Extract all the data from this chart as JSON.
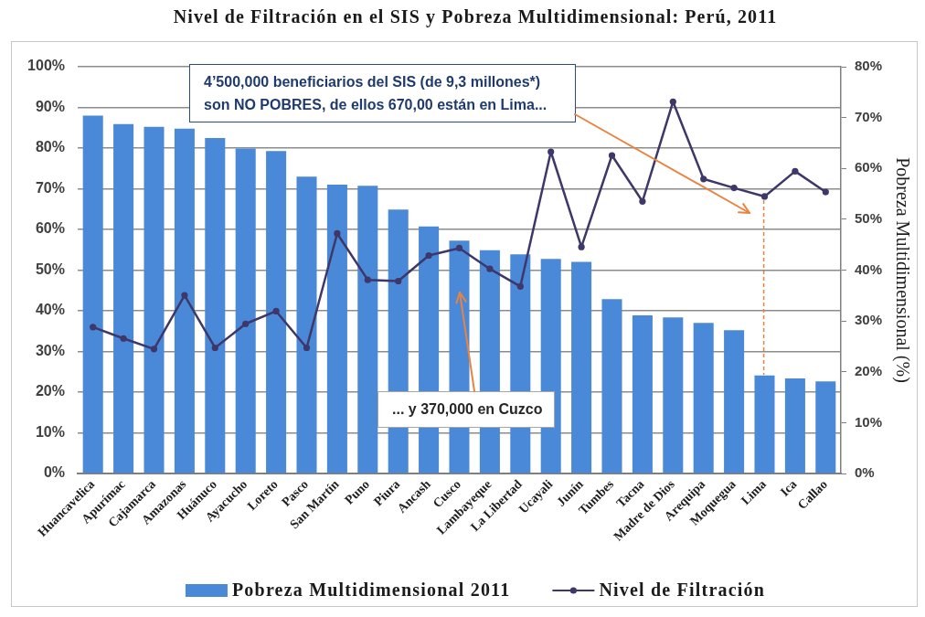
{
  "chart_data": {
    "type": "bar",
    "title": "Nivel de Filtración en el SIS y Pobreza Multidimensional: Perú, 2011",
    "y2label": "Pobreza Multidimensional (%)",
    "categories": [
      "Huancavelica",
      "Apurímac",
      "Cajamarca",
      "Amazonas",
      "Huánuco",
      "Ayacucho",
      "Loreto",
      "Pasco",
      "San Martín",
      "Puno",
      "Piura",
      "Ancash",
      "Cusco",
      "Lambayeque",
      "La Libertad",
      "Ucayali",
      "Junín",
      "Tumbes",
      "Tacna",
      "Madre de Dios",
      "Arequipa",
      "Moquegua",
      "Lima",
      "Ica",
      "Callao"
    ],
    "series": [
      {
        "name": "Pobreza Multidimensional 2011",
        "axis": "y2",
        "color": "#4a88d8",
        "values": [
          70.4,
          68.7,
          68.2,
          67.8,
          66.0,
          63.9,
          63.4,
          58.4,
          56.8,
          56.6,
          51.9,
          48.6,
          45.8,
          43.9,
          43.1,
          42.2,
          41.6,
          34.3,
          31.1,
          30.7,
          29.6,
          28.2,
          19.3,
          18.7,
          18.1
        ]
      },
      {
        "name": "Nivel de Filtración",
        "type": "line",
        "color": "#3d3869",
        "values": [
          36.0,
          33.2,
          30.6,
          43.8,
          30.9,
          36.8,
          39.9,
          30.9,
          59.0,
          47.6,
          47.3,
          53.6,
          55.4,
          50.3,
          46.0,
          79.1,
          55.7,
          78.2,
          66.9,
          91.4,
          72.4,
          70.2,
          68.1,
          74.3,
          69.2
        ]
      }
    ],
    "ylim": [
      0,
      100
    ],
    "yticks": [
      {
        "value": 0,
        "label": "0%"
      },
      {
        "value": 10,
        "label": "10%"
      },
      {
        "value": 20,
        "label": "20%"
      },
      {
        "value": 30,
        "label": "30%"
      },
      {
        "value": 40,
        "label": "40%"
      },
      {
        "value": 50,
        "label": "50%"
      },
      {
        "value": 60,
        "label": "60%"
      },
      {
        "value": 70,
        "label": "70%"
      },
      {
        "value": 80,
        "label": "80%"
      },
      {
        "value": 90,
        "label": "90%"
      },
      {
        "value": 100,
        "label": "100%"
      }
    ],
    "y2lim": [
      0,
      80
    ],
    "y2ticks": [
      {
        "value": 0,
        "label": "0%"
      },
      {
        "value": 10,
        "label": "10%"
      },
      {
        "value": 20,
        "label": "20%"
      },
      {
        "value": 30,
        "label": "30%"
      },
      {
        "value": 40,
        "label": "40%"
      },
      {
        "value": 50,
        "label": "50%"
      },
      {
        "value": 60,
        "label": "60%"
      },
      {
        "value": 70,
        "label": "70%"
      },
      {
        "value": 80,
        "label": "80%"
      }
    ],
    "annotations": [
      "4’500,000 beneficiarios del SIS (de 9,3 millones*) son NO POBRES, de ellos 670,00 están en Lima...",
      "... y 370,000 en Cuzco"
    ],
    "grid": "y",
    "legend": "bottom",
    "marker": "circle"
  }
}
